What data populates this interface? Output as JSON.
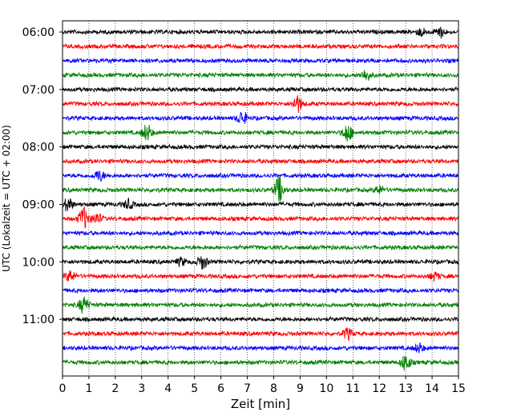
{
  "chart_data": {
    "type": "line",
    "title": "",
    "xlabel": "Zeit  [min]",
    "ylabel": "UTC (Lokalzeit = UTC + 02:00)",
    "xlim": [
      0,
      15
    ],
    "x_ticks": [
      "0",
      "1",
      "2",
      "3",
      "4",
      "5",
      "6",
      "7",
      "8",
      "9",
      "10",
      "11",
      "12",
      "13",
      "14",
      "15"
    ],
    "y_ticks": [
      "06:00",
      "07:00",
      "08:00",
      "09:00",
      "10:00",
      "11:00"
    ],
    "y_tick_rows": [
      0,
      4,
      8,
      12,
      16,
      20
    ],
    "grid_x": true,
    "colors": [
      "#000000",
      "#ff0000",
      "#0000ff",
      "#008000"
    ],
    "series": [
      {
        "start": "06:00",
        "color": "#000000",
        "events": [
          {
            "t": 14.3,
            "amp": 0.35
          },
          {
            "t": 13.6,
            "amp": 0.25
          }
        ]
      },
      {
        "start": "06:15",
        "color": "#ff0000",
        "events": []
      },
      {
        "start": "06:30",
        "color": "#0000ff",
        "events": []
      },
      {
        "start": "06:45",
        "color": "#008000",
        "events": [
          {
            "t": 11.5,
            "amp": 0.35
          }
        ]
      },
      {
        "start": "07:00",
        "color": "#000000",
        "events": []
      },
      {
        "start": "07:15",
        "color": "#ff0000",
        "events": [
          {
            "t": 8.9,
            "amp": 0.55
          }
        ]
      },
      {
        "start": "07:30",
        "color": "#0000ff",
        "events": [
          {
            "t": 6.8,
            "amp": 0.45
          }
        ]
      },
      {
        "start": "07:45",
        "color": "#008000",
        "events": [
          {
            "t": 3.2,
            "amp": 0.55
          },
          {
            "t": 10.8,
            "amp": 0.6
          }
        ]
      },
      {
        "start": "08:00",
        "color": "#000000",
        "events": []
      },
      {
        "start": "08:15",
        "color": "#ff0000",
        "events": []
      },
      {
        "start": "08:30",
        "color": "#0000ff",
        "events": [
          {
            "t": 1.4,
            "amp": 0.35
          }
        ]
      },
      {
        "start": "08:45",
        "color": "#008000",
        "events": [
          {
            "t": 8.2,
            "amp": 0.85
          },
          {
            "t": 12.0,
            "amp": 0.25
          }
        ]
      },
      {
        "start": "09:00",
        "color": "#000000",
        "events": [
          {
            "t": 0.2,
            "amp": 0.45
          },
          {
            "t": 2.5,
            "amp": 0.3
          }
        ]
      },
      {
        "start": "09:15",
        "color": "#ff0000",
        "events": [
          {
            "t": 0.8,
            "amp": 0.75
          },
          {
            "t": 1.3,
            "amp": 0.35
          }
        ]
      },
      {
        "start": "09:30",
        "color": "#0000ff",
        "events": []
      },
      {
        "start": "09:45",
        "color": "#008000",
        "events": []
      },
      {
        "start": "10:00",
        "color": "#000000",
        "events": [
          {
            "t": 5.3,
            "amp": 0.45
          },
          {
            "t": 4.5,
            "amp": 0.25
          }
        ]
      },
      {
        "start": "10:15",
        "color": "#ff0000",
        "events": [
          {
            "t": 0.3,
            "amp": 0.35
          },
          {
            "t": 14.1,
            "amp": 0.25
          }
        ]
      },
      {
        "start": "10:30",
        "color": "#0000ff",
        "events": []
      },
      {
        "start": "10:45",
        "color": "#008000",
        "events": [
          {
            "t": 0.8,
            "amp": 0.55
          }
        ]
      },
      {
        "start": "11:00",
        "color": "#000000",
        "events": []
      },
      {
        "start": "11:15",
        "color": "#ff0000",
        "events": [
          {
            "t": 10.8,
            "amp": 0.35
          }
        ]
      },
      {
        "start": "11:30",
        "color": "#0000ff",
        "events": [
          {
            "t": 13.5,
            "amp": 0.3
          }
        ]
      },
      {
        "start": "11:45",
        "color": "#008000",
        "events": [
          {
            "t": 13.0,
            "amp": 0.55
          }
        ]
      }
    ]
  }
}
